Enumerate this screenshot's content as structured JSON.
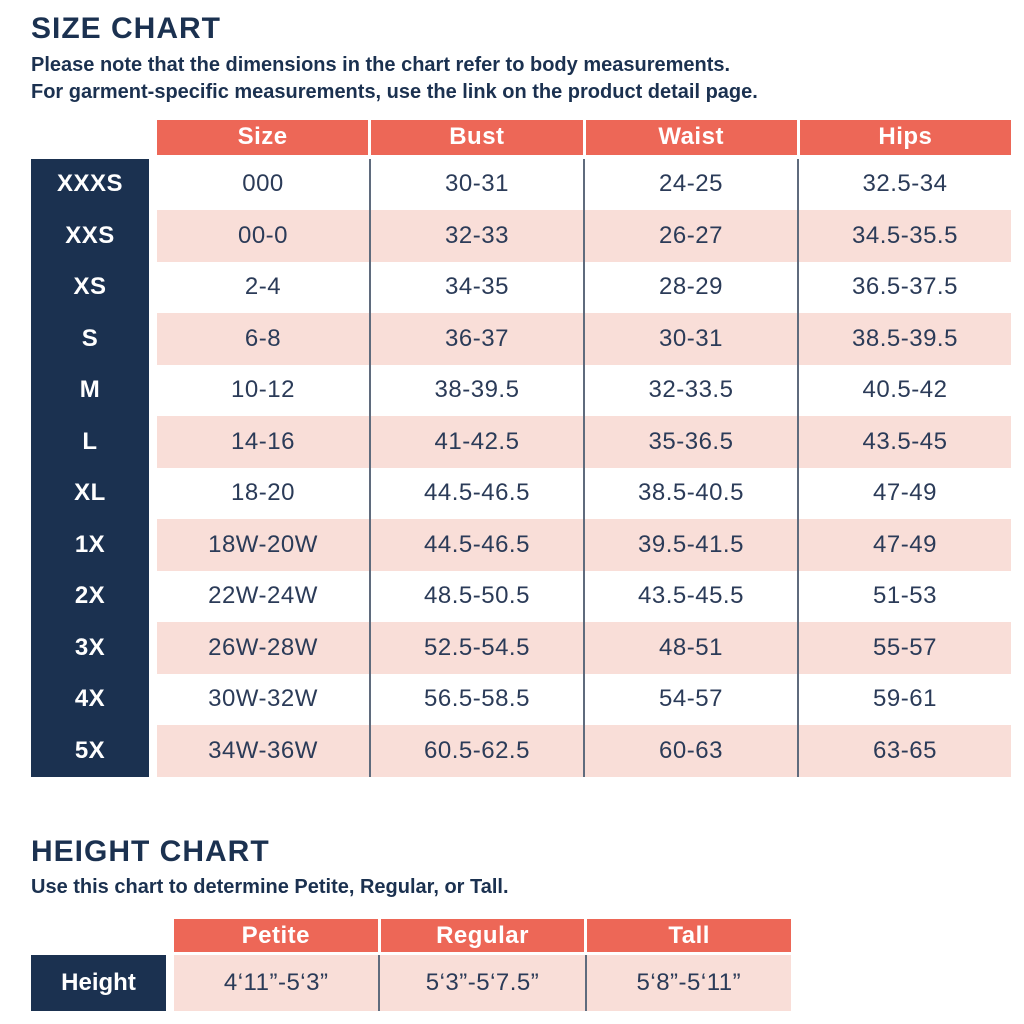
{
  "size_chart": {
    "title": "SIZE CHART",
    "note_lines": [
      "Please note that the dimensions in the chart refer to body measurements.",
      "For garment-specific measurements, use the link on the product detail page."
    ],
    "columns": [
      "Size",
      "Bust",
      "Waist",
      "Hips"
    ],
    "rows": [
      {
        "label": "XXXS",
        "size": "000",
        "bust": "30-31",
        "waist": "24-25",
        "hips": "32.5-34"
      },
      {
        "label": "XXS",
        "size": "00-0",
        "bust": "32-33",
        "waist": "26-27",
        "hips": "34.5-35.5"
      },
      {
        "label": "XS",
        "size": "2-4",
        "bust": "34-35",
        "waist": "28-29",
        "hips": "36.5-37.5"
      },
      {
        "label": "S",
        "size": "6-8",
        "bust": "36-37",
        "waist": "30-31",
        "hips": "38.5-39.5"
      },
      {
        "label": "M",
        "size": "10-12",
        "bust": "38-39.5",
        "waist": "32-33.5",
        "hips": "40.5-42"
      },
      {
        "label": "L",
        "size": "14-16",
        "bust": "41-42.5",
        "waist": "35-36.5",
        "hips": "43.5-45"
      },
      {
        "label": "XL",
        "size": "18-20",
        "bust": "44.5-46.5",
        "waist": "38.5-40.5",
        "hips": "47-49"
      },
      {
        "label": "1X",
        "size": "18W-20W",
        "bust": "44.5-46.5",
        "waist": "39.5-41.5",
        "hips": "47-49"
      },
      {
        "label": "2X",
        "size": "22W-24W",
        "bust": "48.5-50.5",
        "waist": "43.5-45.5",
        "hips": "51-53"
      },
      {
        "label": "3X",
        "size": "26W-28W",
        "bust": "52.5-54.5",
        "waist": "48-51",
        "hips": "55-57"
      },
      {
        "label": "4X",
        "size": "30W-32W",
        "bust": "56.5-58.5",
        "waist": "54-57",
        "hips": "59-61"
      },
      {
        "label": "5X",
        "size": "34W-36W",
        "bust": "60.5-62.5",
        "waist": "60-63",
        "hips": "63-65"
      }
    ]
  },
  "height_chart": {
    "title": "HEIGHT CHART",
    "note": "Use this chart to determine Petite, Regular, or Tall.",
    "columns": [
      "Petite",
      "Regular",
      "Tall"
    ],
    "row_label": "Height",
    "values": [
      "4‘11”-5‘3”",
      "5‘3”-5‘7.5”",
      "5‘8”-5‘11”"
    ]
  },
  "colors": {
    "header_orange": "#ED6757",
    "navy": "#1B3150",
    "row_pink": "#F9DED8",
    "cell_text": "#2B3B58",
    "divider": "#5F6B7D"
  }
}
